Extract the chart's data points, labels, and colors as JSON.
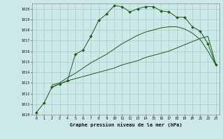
{
  "xlabel": "Graphe pression niveau de la mer (hPa)",
  "bg_color": "#cce8e8",
  "grid_color": "#aacccc",
  "line_color": "#1a5c1a",
  "ylim": [
    1010,
    1020.5
  ],
  "xlim": [
    -0.5,
    23.5
  ],
  "yticks": [
    1010,
    1011,
    1012,
    1013,
    1014,
    1015,
    1016,
    1017,
    1018,
    1019,
    1020
  ],
  "xticks": [
    0,
    1,
    2,
    3,
    4,
    5,
    6,
    7,
    8,
    9,
    10,
    11,
    12,
    13,
    14,
    15,
    16,
    17,
    18,
    19,
    20,
    21,
    22,
    23
  ],
  "series1_x": [
    0,
    1,
    2,
    3,
    4,
    5,
    6,
    7,
    8,
    9,
    10,
    11,
    12,
    13,
    14,
    15,
    16,
    17,
    18,
    19,
    20,
    21,
    22,
    23
  ],
  "series1_y": [
    1010.2,
    1011.1,
    1012.6,
    1012.9,
    1013.2,
    1015.7,
    1016.1,
    1017.4,
    1018.9,
    1019.5,
    1020.3,
    1020.2,
    1019.7,
    1020.0,
    1020.2,
    1020.2,
    1019.8,
    1019.7,
    1019.2,
    1019.2,
    1018.3,
    1017.9,
    1016.7,
    1014.7
  ],
  "series2_x": [
    2,
    3,
    4,
    5,
    6,
    7,
    8,
    9,
    10,
    11,
    12,
    13,
    14,
    15,
    16,
    17,
    18,
    19,
    20,
    21,
    22,
    23
  ],
  "series2_y": [
    1012.6,
    1012.9,
    1013.2,
    1013.4,
    1013.6,
    1013.8,
    1014.0,
    1014.2,
    1014.4,
    1014.7,
    1014.9,
    1015.1,
    1015.4,
    1015.6,
    1015.8,
    1016.0,
    1016.3,
    1016.6,
    1016.9,
    1017.2,
    1017.4,
    1014.8
  ],
  "series3_x": [
    2,
    3,
    4,
    5,
    6,
    7,
    8,
    9,
    10,
    11,
    12,
    13,
    14,
    15,
    16,
    17,
    18,
    19,
    20,
    21,
    22,
    23
  ],
  "series3_y": [
    1012.8,
    1013.0,
    1013.5,
    1013.9,
    1014.4,
    1014.9,
    1015.3,
    1015.7,
    1016.2,
    1016.7,
    1017.1,
    1017.5,
    1017.8,
    1018.0,
    1018.2,
    1018.3,
    1018.3,
    1018.1,
    1017.7,
    1017.1,
    1016.0,
    1014.7
  ]
}
